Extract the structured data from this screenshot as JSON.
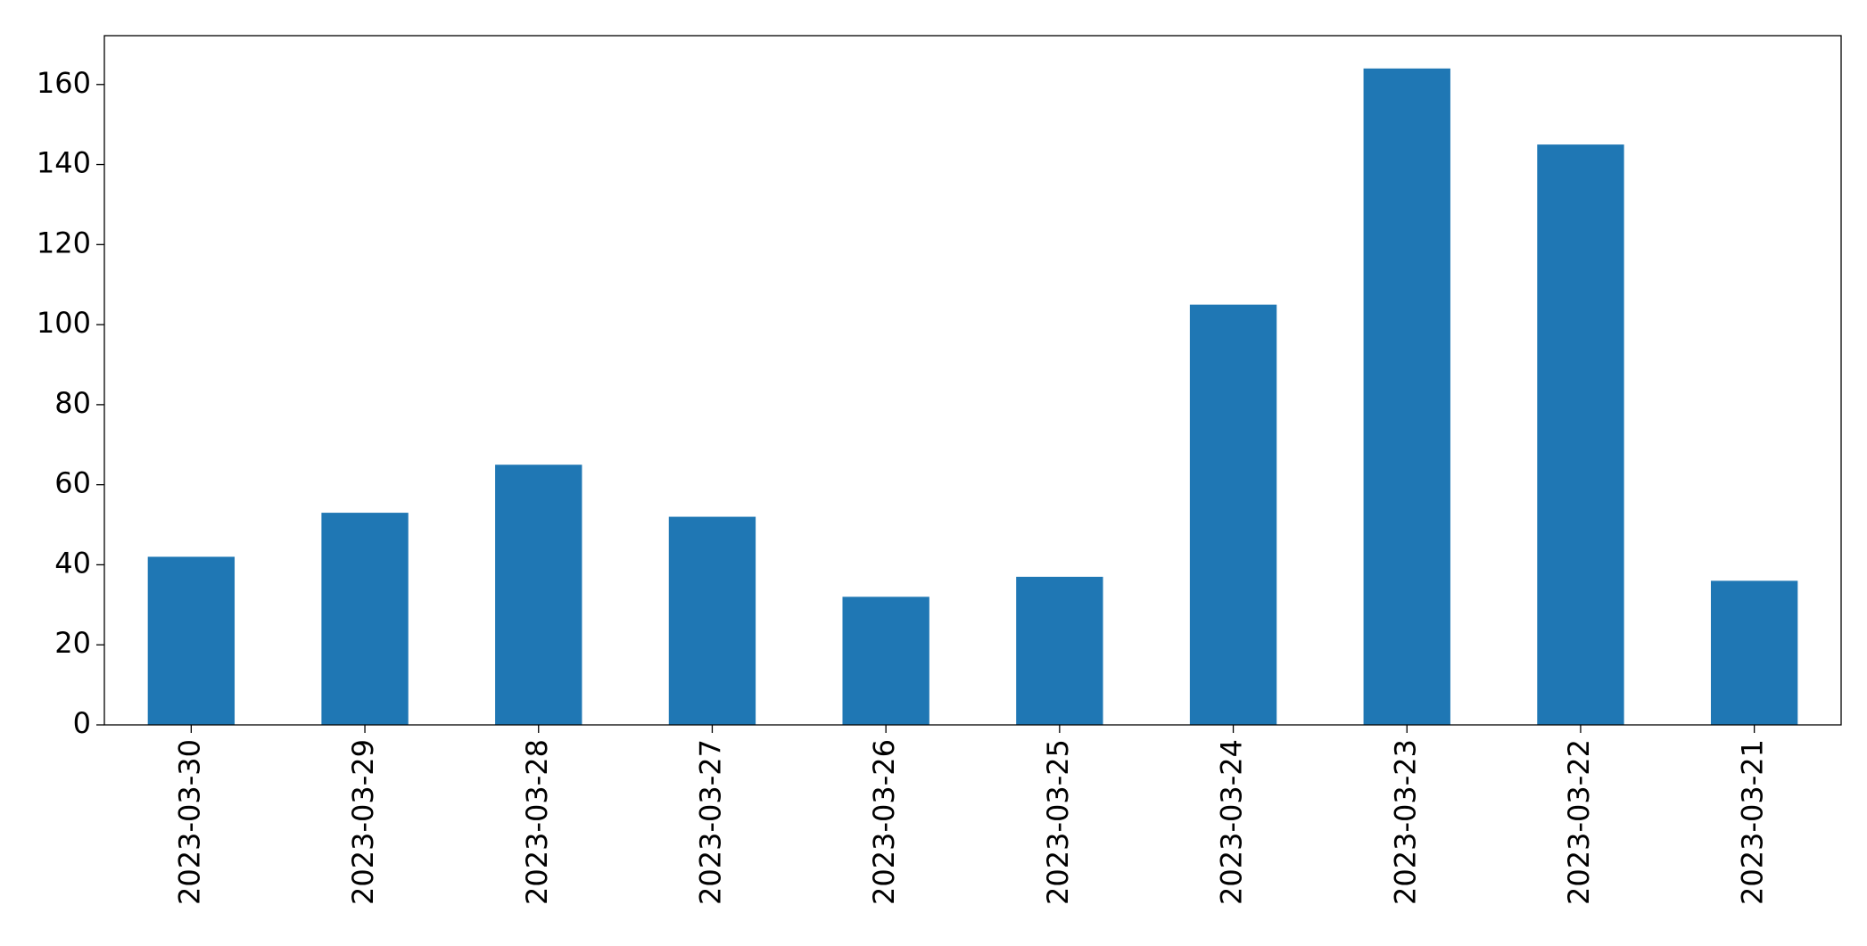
{
  "chart_data": {
    "type": "bar",
    "categories": [
      "2023-03-30",
      "2023-03-29",
      "2023-03-28",
      "2023-03-27",
      "2023-03-26",
      "2023-03-25",
      "2023-03-24",
      "2023-03-23",
      "2023-03-22",
      "2023-03-21"
    ],
    "values": [
      42,
      53,
      65,
      52,
      32,
      37,
      105,
      164,
      145,
      36
    ],
    "color": "#1f77b4",
    "ylim": [
      0,
      172.2
    ],
    "yticks": [
      0,
      20,
      40,
      60,
      80,
      100,
      120,
      140,
      160
    ],
    "grid": false
  }
}
